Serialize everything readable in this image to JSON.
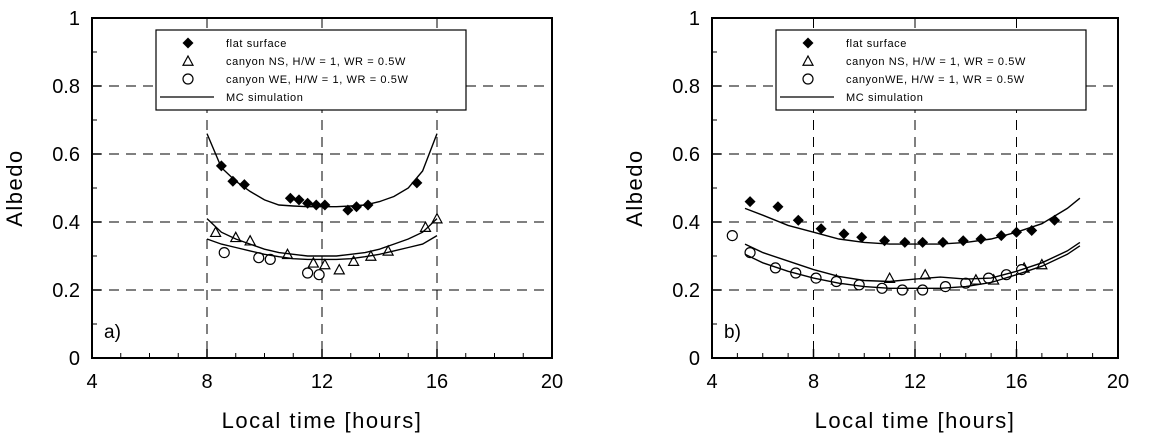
{
  "chart_data": [
    {
      "type": "scatter",
      "panel_label": "a)",
      "xlabel": "Local time [hours]",
      "ylabel": "Albedo",
      "xlim": [
        4,
        20
      ],
      "ylim": [
        0,
        1
      ],
      "xticks": [
        "4",
        "8",
        "12",
        "16",
        "20"
      ],
      "yticks": [
        "0",
        "0.2",
        "0.4",
        "0.6",
        "0.8",
        "1"
      ],
      "grid": "dashed",
      "legend_position": "top",
      "legend": [
        "flat surface",
        "canyon NS, H/W = 1, WR = 0.5W",
        "canyon WE, H/W = 1, WR = 0.5W",
        "MC simulation"
      ],
      "series": [
        {
          "name": "flat surface",
          "marker": "diamond",
          "x": [
            8.5,
            8.9,
            9.3,
            10.9,
            11.2,
            11.5,
            11.8,
            12.1,
            12.9,
            13.2,
            13.6,
            15.3
          ],
          "y": [
            0.565,
            0.52,
            0.51,
            0.47,
            0.465,
            0.455,
            0.45,
            0.45,
            0.435,
            0.445,
            0.45,
            0.515
          ]
        },
        {
          "name": "canyon NS, H/W = 1, WR = 0.5W",
          "marker": "triangle",
          "x": [
            8.3,
            9.0,
            9.5,
            10.8,
            11.7,
            12.1,
            12.6,
            13.1,
            13.7,
            14.3,
            15.6,
            16.0
          ],
          "y": [
            0.37,
            0.355,
            0.345,
            0.305,
            0.28,
            0.275,
            0.26,
            0.285,
            0.3,
            0.315,
            0.385,
            0.41
          ]
        },
        {
          "name": "canyon WE, H/W = 1, WR = 0.5W",
          "marker": "circle",
          "x": [
            8.6,
            9.8,
            10.2,
            11.5,
            11.9
          ],
          "y": [
            0.31,
            0.295,
            0.29,
            0.25,
            0.245
          ]
        },
        {
          "name": "MC simulation",
          "marker": "line",
          "lines": [
            {
              "x": [
                8.0,
                8.5,
                9.0,
                9.5,
                10.0,
                10.5,
                11.0,
                11.5,
                12.0,
                12.5,
                13.0,
                13.5,
                14.0,
                14.5,
                15.0,
                15.5,
                16.0
              ],
              "y": [
                0.66,
                0.56,
                0.52,
                0.49,
                0.465,
                0.45,
                0.447,
                0.445,
                0.445,
                0.445,
                0.447,
                0.45,
                0.46,
                0.475,
                0.5,
                0.55,
                0.66
              ]
            },
            {
              "x": [
                8.0,
                8.5,
                9.0,
                9.5,
                10.0,
                10.5,
                11.0,
                11.5,
                12.0,
                12.5,
                13.0,
                13.5,
                14.0,
                14.5,
                15.0,
                15.5,
                16.0
              ],
              "y": [
                0.41,
                0.37,
                0.35,
                0.335,
                0.32,
                0.31,
                0.305,
                0.3,
                0.3,
                0.3,
                0.305,
                0.31,
                0.32,
                0.335,
                0.35,
                0.37,
                0.41
              ]
            },
            {
              "x": [
                8.0,
                8.5,
                9.0,
                9.5,
                10.0,
                10.5,
                11.0,
                11.5,
                12.0,
                12.5,
                13.0,
                13.5,
                14.0,
                14.5,
                15.0,
                15.5,
                16.0
              ],
              "y": [
                0.35,
                0.335,
                0.325,
                0.315,
                0.305,
                0.298,
                0.292,
                0.29,
                0.29,
                0.29,
                0.292,
                0.298,
                0.305,
                0.315,
                0.325,
                0.335,
                0.36
              ]
            }
          ]
        }
      ]
    },
    {
      "type": "scatter",
      "panel_label": "b)",
      "xlabel": "Local time [hours]",
      "ylabel": "Albedo",
      "xlim": [
        4,
        20
      ],
      "ylim": [
        0,
        1
      ],
      "xticks": [
        "4",
        "8",
        "12",
        "16",
        "20"
      ],
      "yticks": [
        "0",
        "0.2",
        "0.4",
        "0.6",
        "0.8",
        "1"
      ],
      "grid": "dashed",
      "legend_position": "top",
      "legend": [
        "flat surface",
        "canyon NS, H/W = 1, WR = 0.5W",
        "canyonWE, H/W = 1, WR = 0.5W",
        "MC simulation"
      ],
      "series": [
        {
          "name": "flat surface",
          "marker": "diamond",
          "x": [
            5.5,
            6.6,
            7.4,
            8.3,
            9.2,
            9.9,
            10.8,
            11.6,
            12.3,
            13.1,
            13.9,
            14.6,
            15.4,
            16.0,
            16.6,
            17.5
          ],
          "y": [
            0.46,
            0.445,
            0.405,
            0.38,
            0.365,
            0.355,
            0.345,
            0.34,
            0.34,
            0.34,
            0.345,
            0.35,
            0.36,
            0.37,
            0.375,
            0.405
          ]
        },
        {
          "name": "canyon NS, H/W = 1, WR = 0.5W",
          "marker": "triangle",
          "x": [
            8.9,
            11.0,
            12.4,
            14.4,
            15.1,
            16.3,
            17.0
          ],
          "y": [
            0.23,
            0.235,
            0.245,
            0.23,
            0.23,
            0.265,
            0.275
          ]
        },
        {
          "name": "canyonWE, H/W = 1, WR = 0.5W",
          "marker": "circle",
          "x": [
            4.8,
            5.5,
            6.5,
            7.3,
            8.1,
            8.9,
            9.8,
            10.7,
            11.5,
            12.3,
            13.2,
            14.0,
            14.9,
            15.6,
            16.2
          ],
          "y": [
            0.36,
            0.31,
            0.265,
            0.25,
            0.235,
            0.225,
            0.215,
            0.205,
            0.2,
            0.2,
            0.21,
            0.22,
            0.235,
            0.245,
            0.26
          ]
        },
        {
          "name": "MC simulation",
          "marker": "line",
          "lines": [
            {
              "x": [
                5.3,
                6.0,
                7.0,
                8.0,
                9.0,
                10.0,
                11.0,
                12.0,
                13.0,
                14.0,
                15.0,
                16.0,
                17.0,
                18.0,
                18.5
              ],
              "y": [
                0.44,
                0.42,
                0.39,
                0.37,
                0.35,
                0.34,
                0.335,
                0.335,
                0.335,
                0.34,
                0.35,
                0.37,
                0.395,
                0.44,
                0.47
              ]
            },
            {
              "x": [
                5.3,
                6.0,
                7.0,
                8.0,
                9.0,
                10.0,
                11.0,
                12.0,
                13.0,
                14.0,
                15.0,
                16.0,
                17.0,
                18.0,
                18.5
              ],
              "y": [
                0.335,
                0.31,
                0.285,
                0.26,
                0.24,
                0.228,
                0.225,
                0.232,
                0.238,
                0.232,
                0.235,
                0.255,
                0.28,
                0.315,
                0.34
              ]
            },
            {
              "x": [
                5.3,
                6.0,
                7.0,
                8.0,
                9.0,
                10.0,
                11.0,
                12.0,
                13.0,
                14.0,
                15.0,
                16.0,
                17.0,
                18.0,
                18.5
              ],
              "y": [
                0.305,
                0.28,
                0.255,
                0.235,
                0.22,
                0.21,
                0.205,
                0.205,
                0.205,
                0.21,
                0.222,
                0.245,
                0.27,
                0.305,
                0.33
              ]
            }
          ]
        }
      ]
    }
  ]
}
